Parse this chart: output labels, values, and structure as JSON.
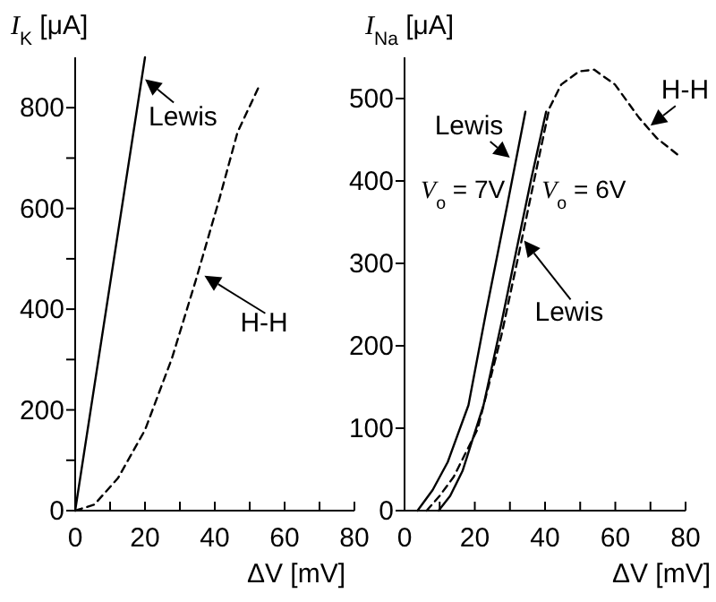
{
  "chart_data": [
    {
      "type": "line",
      "xlabel": "ΔV [mV]",
      "ylabel": "I$_{K}$ [μA]",
      "xlim": [
        0,
        80
      ],
      "ylim": [
        0,
        900
      ],
      "xticks": [
        0,
        {
          "value": 10,
          "label": null
        },
        20,
        {
          "value": 30,
          "label": null
        },
        40,
        {
          "value": 50,
          "label": null
        },
        60,
        {
          "value": 70,
          "label": null
        },
        80
      ],
      "yticks": [
        0,
        {
          "value": 100,
          "label": null
        },
        200,
        {
          "value": 300,
          "label": null
        },
        400,
        {
          "value": 500,
          "label": null
        },
        600,
        {
          "value": 700,
          "label": null
        },
        800
      ],
      "series": [
        {
          "color": "#000000",
          "line_style": "solid",
          "x": [
            0,
            20
          ],
          "values": [
            0,
            900
          ]
        },
        {
          "color": "#000000",
          "line_style": "dashed",
          "x": [
            0,
            5.5,
            12.3,
            20,
            27.7,
            34.5,
            41.4,
            46.5,
            52.5
          ],
          "values": [
            0,
            12,
            65,
            160,
            302,
            456,
            621,
            751,
            840
          ]
        }
      ],
      "annotations": [
        {
          "text": "Lewis",
          "x": 19,
          "y": 860
        },
        {
          "text": "H-H",
          "x": 36,
          "y": 470
        }
      ]
    },
    {
      "type": "line",
      "xlabel": "ΔV [mV]",
      "ylabel": "I$_{Na}$ [μA]",
      "xlim": [
        0,
        80
      ],
      "ylim": [
        0,
        550
      ],
      "xticks": [
        0,
        {
          "value": 10,
          "label": null
        },
        20,
        {
          "value": 30,
          "label": null
        },
        40,
        {
          "value": 50,
          "label": null
        },
        60,
        {
          "value": 70,
          "label": null
        },
        80
      ],
      "yticks": [
        0,
        100,
        200,
        300,
        400,
        500
      ],
      "series": [
        {
          "name": "V$_{o}$ = 7V",
          "color": "#000000",
          "line_style": "solid",
          "x": [
            3.7,
            8,
            12.3,
            18.2,
            23.3,
            29.3,
            34.4
          ],
          "values": [
            0,
            25,
            59,
            128,
            243,
            372,
            484
          ]
        },
        {
          "name": "V$_{o}$ = 6V",
          "color": "#000000",
          "line_style": "solid",
          "x": [
            9.7,
            13,
            16.5,
            22.5,
            27.6,
            31.8,
            36,
            40.3
          ],
          "values": [
            0,
            18,
            48,
            128,
            228,
            315,
            401,
            484
          ]
        },
        {
          "color": "#000000",
          "line_style": "dashed",
          "x": [
            6.3,
            10,
            14,
            20.8,
            27.6,
            32.7,
            36.9,
            41.2,
            44.6,
            49.7,
            54,
            59.9,
            66.7,
            71.8,
            78.6
          ],
          "values": [
            0,
            18,
            41,
            99,
            213,
            315,
            401,
            488,
            517,
            533,
            535,
            517,
            477,
            452,
            429
          ]
        }
      ],
      "annotations": [
        {
          "text": "Lewis",
          "x": 31,
          "y": 426
        },
        {
          "text": "Lewis",
          "x": 33,
          "y": 330
        },
        {
          "text": "H-H",
          "x": 69,
          "y": 465
        }
      ]
    }
  ]
}
